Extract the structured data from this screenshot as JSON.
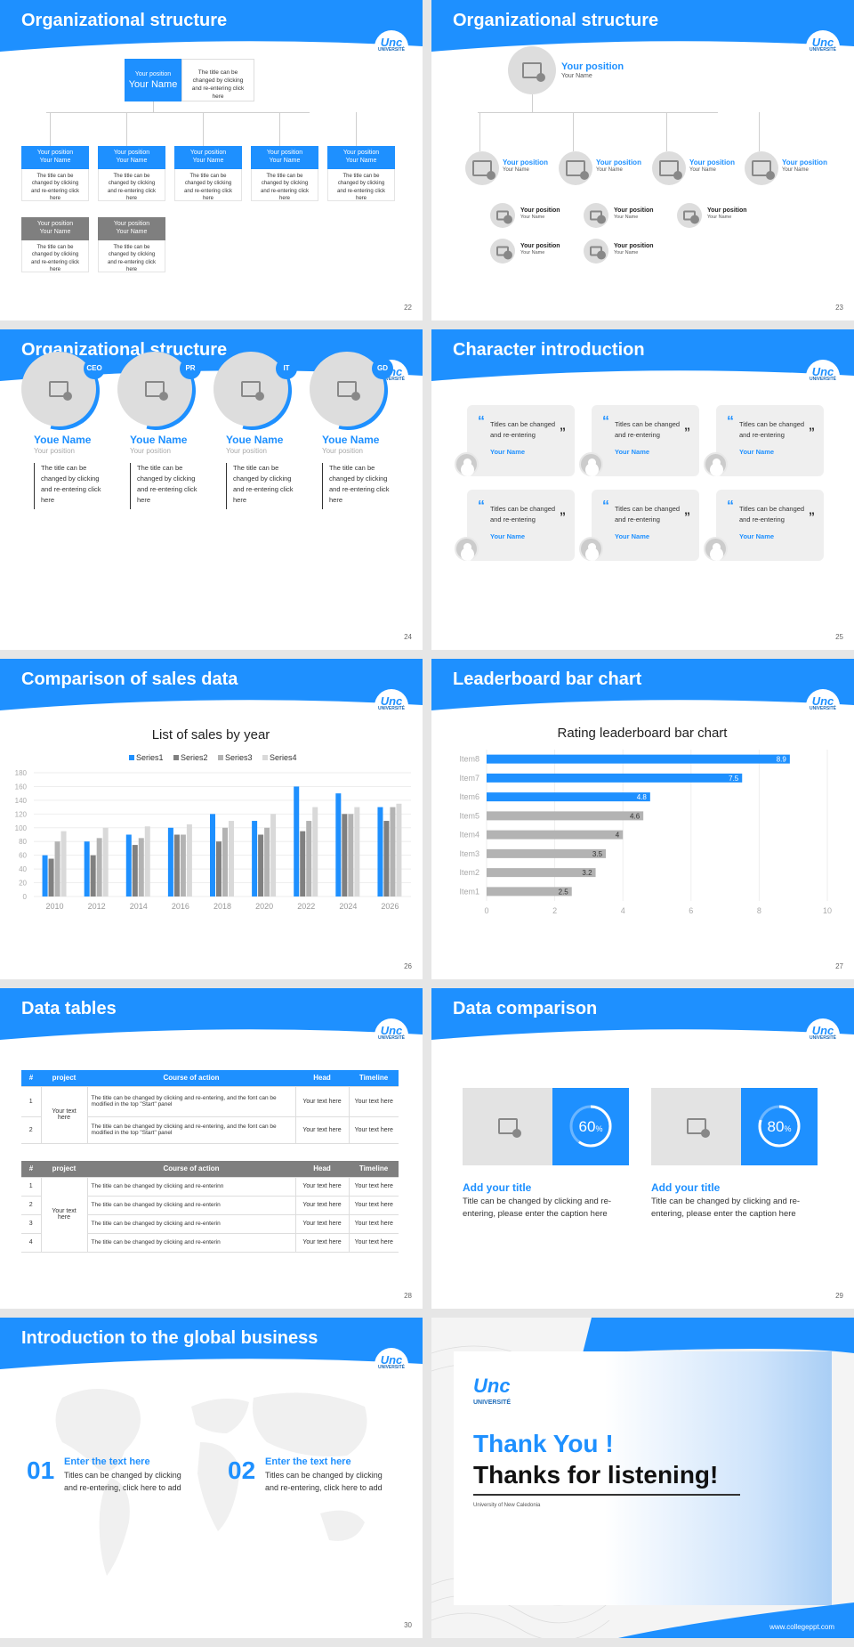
{
  "slides": {
    "s22": {
      "title": "Organizational structure",
      "page": "22",
      "top": {
        "position": "Your position",
        "name": "Your Name",
        "desc": "The title can be changed by clicking and re-entering click here"
      },
      "row": {
        "position": "Your position",
        "name": "Your Name",
        "desc": "The title can be changed by clicking and re-entering click here"
      }
    },
    "s23": {
      "title": "Organizational structure",
      "page": "23",
      "position": "Your position",
      "name": "Your Name"
    },
    "s24": {
      "title": "Organizational structure",
      "page": "24",
      "badges": [
        "CEO",
        "PR",
        "IT",
        "GD"
      ],
      "name": "Youe Name",
      "position": "Your position",
      "desc": "The title can be changed by clicking and re-entering click here"
    },
    "s25": {
      "title": "Character introduction",
      "page": "25",
      "quote": "Titles can be changed and re-entering",
      "name": "Your Name"
    },
    "s26": {
      "title": "Comparison of sales data",
      "page": "26"
    },
    "s27": {
      "title": "Leaderboard bar chart",
      "page": "27"
    },
    "s28": {
      "title": "Data tables",
      "page": "28",
      "headers": [
        "#",
        "project",
        "Course of action",
        "Head",
        "Timeline"
      ],
      "text_here": "Your text here",
      "row1": "The title can be changed by clicking and re-entering, and the font can be modified in the top \"Start\" panel",
      "row2": "The title can be changed by clicking and re-entering, and the font can be modified in the top \"Start\" panel",
      "row_short": "The title can be changed by clicking and re-enterin",
      "row_short1": "The title can be changed by clicking and re-enterinn"
    },
    "s29": {
      "title": "Data comparison",
      "page": "29",
      "cards": [
        {
          "pct": "60",
          "title": "Add your title",
          "desc": "Title can be changed by clicking and re-entering, please enter the caption here"
        },
        {
          "pct": "80",
          "title": "Add your title",
          "desc": "Title can be changed by clicking and re-entering, please enter the caption here"
        }
      ]
    },
    "s30": {
      "title": "Introduction to the global business",
      "page": "30",
      "items": [
        {
          "num": "01",
          "title": "Enter the text here",
          "desc": "Titles can be changed by clicking and re-entering, click here to add"
        },
        {
          "num": "02",
          "title": "Enter the text here",
          "desc": "Titles can be changed by clicking and re-entering, click here to add"
        }
      ]
    },
    "s31": {
      "thanks": "Thank You !",
      "listening": "Thanks for listening!",
      "uni": "University of New Caledonia",
      "site": "www.collegeppt.com",
      "logo_main": "Unc",
      "logo_sub": "UNIVERSITÉ"
    }
  },
  "logo": {
    "main": "Unc",
    "sub": "UNIVERSITÉ"
  },
  "chart_data": [
    {
      "type": "bar",
      "title": "List of sales by year",
      "categories": [
        "2010",
        "2012",
        "2014",
        "2016",
        "2018",
        "2020",
        "2022",
        "2024",
        "2026"
      ],
      "series": [
        {
          "name": "Series1",
          "color": "#1e90ff",
          "values": [
            60,
            80,
            90,
            100,
            120,
            110,
            160,
            150,
            130
          ]
        },
        {
          "name": "Series2",
          "color": "#808080",
          "values": [
            55,
            60,
            75,
            90,
            80,
            90,
            95,
            120,
            110
          ]
        },
        {
          "name": "Series3",
          "color": "#b3b3b3",
          "values": [
            80,
            85,
            85,
            90,
            100,
            100,
            110,
            120,
            130
          ]
        },
        {
          "name": "Series4",
          "color": "#d9d9d9",
          "values": [
            95,
            100,
            102,
            105,
            110,
            120,
            130,
            130,
            135
          ]
        }
      ],
      "ylim": [
        0,
        180
      ],
      "yticks": [
        0,
        20,
        40,
        60,
        80,
        100,
        120,
        140,
        160,
        180
      ]
    },
    {
      "type": "bar",
      "orientation": "horizontal",
      "title": "Rating leaderboard bar chart",
      "categories": [
        "Item8",
        "Item7",
        "Item6",
        "Item5",
        "Item4",
        "Item3",
        "Item2",
        "Item1"
      ],
      "values": [
        8.9,
        7.5,
        4.8,
        4.6,
        4,
        3.5,
        3.2,
        2.5
      ],
      "colors": [
        "#1e90ff",
        "#1e90ff",
        "#1e90ff",
        "#b3b3b3",
        "#b3b3b3",
        "#b3b3b3",
        "#b3b3b3",
        "#b3b3b3"
      ],
      "xlim": [
        0,
        10
      ],
      "xticks": [
        0,
        2,
        4,
        6,
        8,
        10
      ]
    }
  ]
}
